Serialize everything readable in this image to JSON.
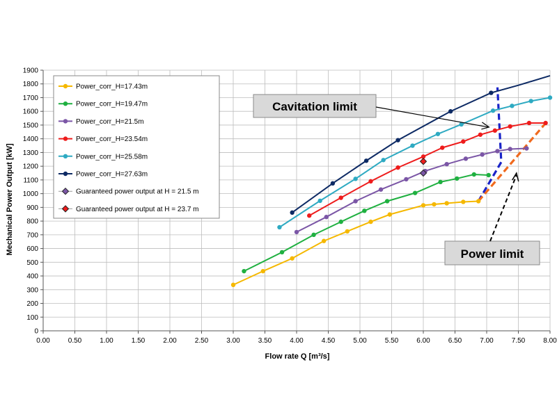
{
  "chart_data": {
    "type": "line",
    "title": "",
    "xlabel": "Flow rate Q [m³/s]",
    "ylabel": "Mechanical Power Output  [kW]",
    "xlim": [
      0,
      8
    ],
    "ylim": [
      0,
      1900
    ],
    "x_ticks": [
      "0.00",
      "0.50",
      "1.00",
      "1.50",
      "2.00",
      "2.50",
      "3.00",
      "3.50",
      "4.00",
      "4.50",
      "5.00",
      "5.50",
      "6.00",
      "6.50",
      "7.00",
      "7.50",
      "8.00"
    ],
    "y_ticks": [
      "0",
      "100",
      "200",
      "300",
      "400",
      "500",
      "600",
      "700",
      "800",
      "900",
      "1000",
      "1100",
      "1200",
      "1300",
      "1400",
      "1500",
      "1600",
      "1700",
      "1800",
      "1900"
    ],
    "grid": true,
    "legend_position": "top-left",
    "series": [
      {
        "name": "Power_corr_H=17.43m",
        "color": "#f5b800",
        "x": [
          3.0,
          3.47,
          3.93,
          4.43,
          4.8,
          5.17,
          5.47,
          6.0,
          6.17,
          6.37,
          6.63,
          6.87
        ],
        "y": [
          335,
          435,
          528,
          655,
          725,
          795,
          848,
          915,
          922,
          930,
          940,
          945
        ]
      },
      {
        "name": "Power_corr_H=19.47m",
        "color": "#1fb040",
        "x": [
          3.17,
          3.77,
          4.27,
          4.7,
          5.07,
          5.43,
          5.87,
          6.27,
          6.53,
          6.8,
          7.03
        ],
        "y": [
          435,
          573,
          700,
          795,
          875,
          945,
          1005,
          1085,
          1110,
          1140,
          1135
        ]
      },
      {
        "name": "Power_corr_H=21.5m",
        "color": "#7b56a6",
        "x": [
          4.0,
          4.47,
          4.93,
          5.33,
          5.73,
          6.03,
          6.37,
          6.67,
          6.93,
          7.17,
          7.37,
          7.63
        ],
        "y": [
          720,
          830,
          945,
          1030,
          1105,
          1165,
          1215,
          1255,
          1285,
          1310,
          1325,
          1330
        ]
      },
      {
        "name": "Power_corr_H=23.54m",
        "color": "#ee1c1c",
        "x": [
          4.2,
          4.7,
          5.17,
          5.6,
          6.0,
          6.3,
          6.63,
          6.9,
          7.13,
          7.37,
          7.67,
          7.93
        ],
        "y": [
          840,
          970,
          1090,
          1190,
          1270,
          1335,
          1380,
          1430,
          1460,
          1490,
          1515,
          1515
        ]
      },
      {
        "name": "Power_corr_H=25.58m",
        "color": "#2eaac2",
        "x": [
          3.73,
          4.37,
          4.93,
          5.37,
          5.83,
          6.23,
          6.6,
          7.1,
          7.4,
          7.7,
          8.0
        ],
        "y": [
          755,
          948,
          1108,
          1245,
          1350,
          1435,
          1505,
          1605,
          1640,
          1675,
          1700
        ]
      },
      {
        "name": "Power_corr_H=27.63m",
        "color": "#0d2a64",
        "x": [
          3.93,
          4.57,
          5.1,
          5.6,
          6.43,
          7.07,
          7.5,
          8.0
        ],
        "y": [
          862,
          1075,
          1240,
          1390,
          1600,
          1735,
          1790,
          1860
        ],
        "markers_x": [
          3.93,
          4.57,
          5.1,
          5.6,
          6.43,
          7.07
        ]
      }
    ],
    "guaranteed_points": [
      {
        "name": "Guaranteed power output at H = 21.5 m",
        "x": 6.0,
        "y": 1150,
        "fill": "#7b56a6"
      },
      {
        "name": "Guaranteed power output at H = 23.7 m",
        "x": 6.0,
        "y": 1235,
        "fill": "#ee1c1c"
      }
    ],
    "cavitation_line": {
      "color": "#1a24c8",
      "x": [
        6.87,
        7.23,
        7.17
      ],
      "y": [
        945,
        1230,
        1775
      ]
    },
    "power_line": {
      "color": "#f06a1e",
      "x": [
        6.87,
        7.97
      ],
      "y": [
        945,
        1535
      ]
    },
    "annotations": [
      {
        "text": "Cavitation limit",
        "target_x": 7.07,
        "target_y": 1485
      },
      {
        "text": "Power limit",
        "target_x": 7.47,
        "target_y": 1165
      }
    ]
  }
}
